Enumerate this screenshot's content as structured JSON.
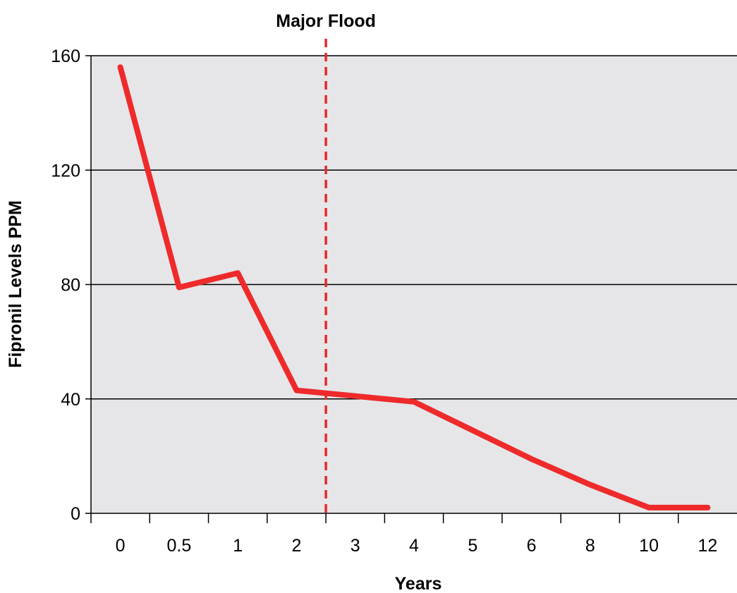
{
  "chart_data": {
    "type": "line",
    "categories": [
      "0",
      "0.5",
      "1",
      "2",
      "3",
      "4",
      "5",
      "6",
      "8",
      "10",
      "12"
    ],
    "series": [
      {
        "values": [
          156,
          79,
          84,
          43,
          41,
          39,
          29,
          19,
          10,
          2,
          2
        ]
      }
    ],
    "xlabel": "Years",
    "ylabel": "Fipronil Levels PPM",
    "ylim": [
      0,
      160
    ],
    "yticks": [
      0,
      40,
      80,
      120,
      160
    ],
    "grid": true,
    "annotation": {
      "label": "Major Flood",
      "x_between": [
        "2",
        "3"
      ]
    },
    "colors": {
      "line": "#ee2a2b",
      "flood_line": "#e8282a",
      "plot_bg": "#e6e6e8",
      "grid": "#000000"
    }
  }
}
